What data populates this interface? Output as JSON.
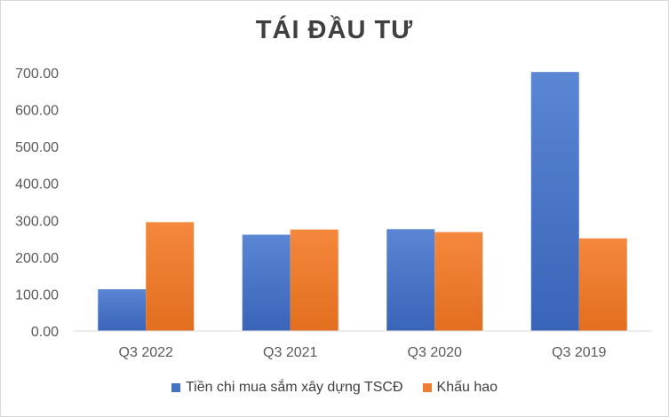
{
  "chart_data": {
    "type": "bar",
    "title": "TÁI ĐẦU TƯ",
    "categories": [
      "Q3 2022",
      "Q3 2021",
      "Q3 2020",
      "Q3 2019"
    ],
    "series": [
      {
        "name": "Tiền chi mua sắm xây dựng TSCĐ",
        "color": "#4472c4",
        "values": [
          113,
          261,
          276,
          702
        ]
      },
      {
        "name": "Khấu hao",
        "color": "#ed7d31",
        "values": [
          295,
          275,
          268,
          251
        ]
      }
    ],
    "ylim": [
      0,
      700
    ],
    "yticks": [
      "0.00",
      "100.00",
      "200.00",
      "300.00",
      "400.00",
      "500.00",
      "600.00",
      "700.00"
    ],
    "grid": false,
    "legend": "bottom"
  }
}
